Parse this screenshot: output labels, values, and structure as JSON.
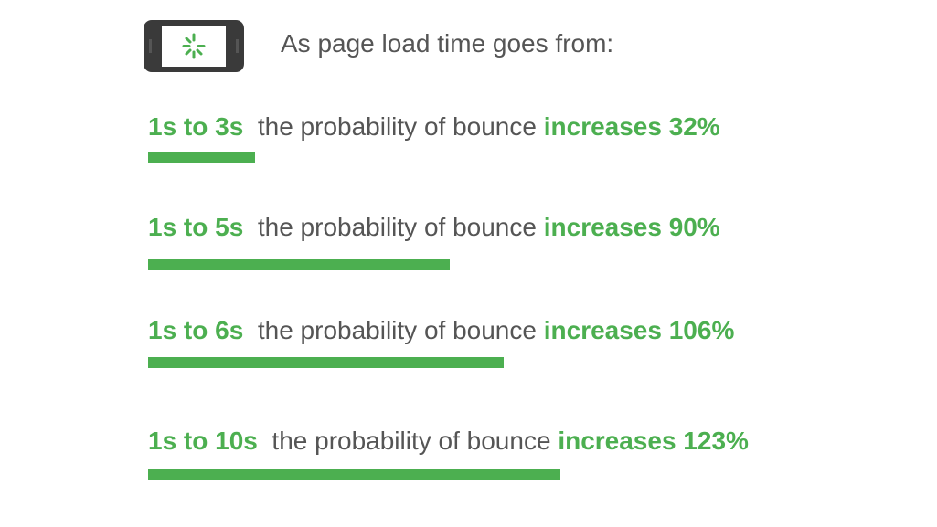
{
  "header": {
    "title": "As page load time goes from:",
    "icon": "phone-loading-icon"
  },
  "colors": {
    "accent": "#4caf50",
    "text": "#555555",
    "phone": "#3a3a3a"
  },
  "chart_data": {
    "type": "bar",
    "orientation": "horizontal",
    "categories": [
      "1s to 3s",
      "1s to 5s",
      "1s to 6s",
      "1s to 10s"
    ],
    "values": [
      32,
      90,
      106,
      123
    ],
    "unit": "%",
    "rows": [
      {
        "range": "1s to 3s",
        "middle": "the probability of bounce",
        "result": "increases 32%",
        "value": 32
      },
      {
        "range": "1s to 5s",
        "middle": "the probability of bounce",
        "result": "increases 90%",
        "value": 90
      },
      {
        "range": "1s to 6s",
        "middle": "the probability of bounce",
        "result": "increases 106%",
        "value": 106
      },
      {
        "range": "1s to 10s",
        "middle": "the probability of bounce",
        "result": "increases 123%",
        "value": 123
      }
    ]
  }
}
